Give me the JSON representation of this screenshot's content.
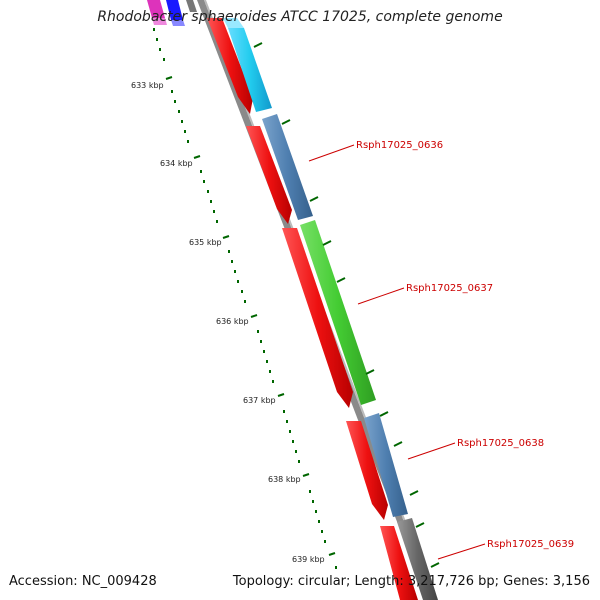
{
  "title": "Rhodobacter sphaeroides ATCC 17025, complete genome",
  "footer": {
    "accession": "Accession: NC_009428",
    "topology": "Topology: circular; Length: 3,217,726 bp; Genes: 3,156"
  },
  "scale_labels": [
    {
      "kbp": 633,
      "label": "633 kbp"
    },
    {
      "kbp": 634,
      "label": "634 kbp"
    },
    {
      "kbp": 635,
      "label": "635 kbp"
    },
    {
      "kbp": 636,
      "label": "636 kbp"
    },
    {
      "kbp": 637,
      "label": "637 kbp"
    },
    {
      "kbp": 638,
      "label": "638 kbp"
    },
    {
      "kbp": 639,
      "label": "639 kbp"
    }
  ],
  "gene_labels": [
    {
      "text": "Rsph17025_0636",
      "color": "#cc0000"
    },
    {
      "text": "Rsph17025_0637",
      "color": "#cc0000"
    },
    {
      "text": "Rsph17025_0638",
      "color": "#cc0000"
    },
    {
      "text": "Rsph17025_0639",
      "color": "#cc0000"
    }
  ],
  "colors": {
    "cds_red": "#ee1111",
    "cog_blue": "#4f7fb0",
    "cog_cyan": "#22ccee",
    "cog_green": "#44cc33",
    "cog_gray": "#666666",
    "cog_magenta": "#dd33bb",
    "cog_navy": "#1a1aff",
    "backbone": "#888888",
    "tick_green": "#006600"
  }
}
